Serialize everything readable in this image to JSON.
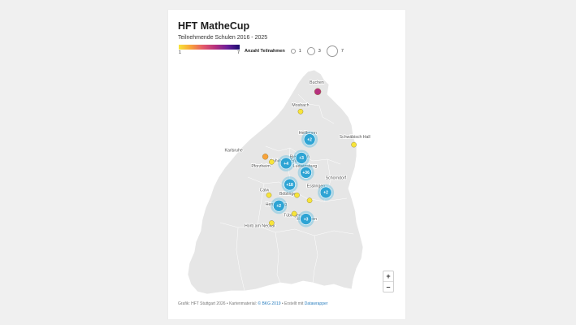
{
  "header": {
    "title": "HFT MatheCup",
    "subtitle": "Teilnehmende Schulen 2016 - 2025"
  },
  "legend": {
    "colorbar_min": "1",
    "colorbar_max": "7",
    "colors": [
      "#f7e43a",
      "#f8a23a",
      "#e45a6a",
      "#b5307e",
      "#6a1f9a",
      "#1b0d6e"
    ],
    "size_title": "Anzahl Teilnahmen",
    "size_values": [
      "1",
      "3",
      "7"
    ]
  },
  "map": {
    "cities": [
      {
        "name": "Buchen",
        "lat": 49.52,
        "lon": 9.32
      },
      {
        "name": "Mosbach",
        "lat": 49.35,
        "lon": 9.14
      },
      {
        "name": "Heilbronn",
        "lat": 49.14,
        "lon": 9.22
      },
      {
        "name": "Schwäbisch Hall",
        "lat": 49.11,
        "lon": 9.74
      },
      {
        "name": "Bietigheim",
        "lat": 48.96,
        "lon": 9.13
      },
      {
        "name": "Vaihingen (Enz)",
        "lat": 48.93,
        "lon": 8.96
      },
      {
        "name": "Karlsruhe",
        "lat": 49.01,
        "lon": 8.4
      },
      {
        "name": "Ludwigsburg",
        "lat": 48.89,
        "lon": 9.19
      },
      {
        "name": "Pforzheim",
        "lat": 48.89,
        "lon": 8.7
      },
      {
        "name": "Calw",
        "lat": 48.71,
        "lon": 8.74
      },
      {
        "name": "Schorndorf",
        "lat": 48.8,
        "lon": 9.53
      },
      {
        "name": "Esslingen",
        "lat": 48.74,
        "lon": 9.31
      },
      {
        "name": "Herrenberg",
        "lat": 48.6,
        "lon": 8.87
      },
      {
        "name": "Böblingen",
        "lat": 48.68,
        "lon": 9.01
      },
      {
        "name": "Reutlingen",
        "lat": 48.49,
        "lon": 9.21
      },
      {
        "name": "Tübingen",
        "lat": 48.52,
        "lon": 9.05
      },
      {
        "name": "Horb am Neckar",
        "lat": 48.44,
        "lon": 8.69
      }
    ],
    "clusters": [
      {
        "label": "+2",
        "lat": 49.1,
        "lon": 9.24
      },
      {
        "label": "+3",
        "lat": 48.96,
        "lon": 9.15
      },
      {
        "label": "+4",
        "lat": 48.92,
        "lon": 8.98
      },
      {
        "label": "+36",
        "lat": 48.85,
        "lon": 9.2
      },
      {
        "label": "+18",
        "lat": 48.76,
        "lon": 9.02
      },
      {
        "label": "+2",
        "lat": 48.7,
        "lon": 9.42
      },
      {
        "label": "+2",
        "lat": 48.6,
        "lon": 8.9
      },
      {
        "label": "+3",
        "lat": 48.5,
        "lon": 9.2
      }
    ],
    "points": [
      {
        "lat": 49.46,
        "lon": 9.33,
        "participations": 4
      },
      {
        "lat": 49.31,
        "lon": 9.14,
        "participations": 1
      },
      {
        "lat": 49.06,
        "lon": 9.73,
        "participations": 1
      },
      {
        "lat": 48.97,
        "lon": 8.75,
        "participations": 2
      },
      {
        "lat": 48.93,
        "lon": 8.82,
        "participations": 1
      },
      {
        "lat": 48.68,
        "lon": 8.79,
        "participations": 1
      },
      {
        "lat": 48.68,
        "lon": 9.1,
        "participations": 1
      },
      {
        "lat": 48.64,
        "lon": 9.24,
        "participations": 1
      },
      {
        "lat": 48.54,
        "lon": 9.07,
        "participations": 1
      },
      {
        "lat": 48.47,
        "lon": 8.82,
        "participations": 1
      }
    ]
  },
  "zoom": {
    "plus": "+",
    "minus": "–"
  },
  "footer": {
    "credit": "Grafik: HFT Stuttgart 2026 • Kartenmaterial: ",
    "map_source": "© BKG 2019",
    "created_with": " • Erstellt mit ",
    "tool": "Datawrapper"
  }
}
